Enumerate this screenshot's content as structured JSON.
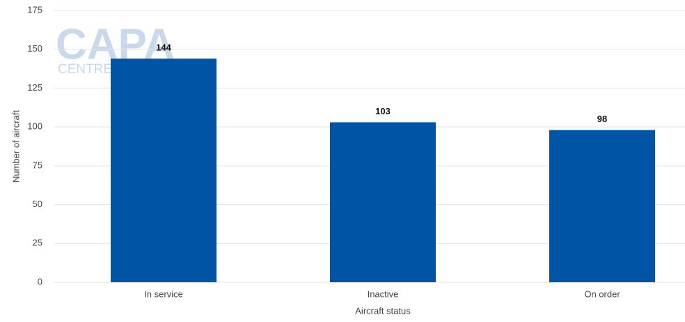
{
  "chart_data": {
    "type": "bar",
    "watermark": "CAPA",
    "watermark_sub": "CENTRE",
    "x_label": "Aircraft status",
    "y_label": "Number of aircraft",
    "categories": [
      "In service",
      "Inactive",
      "On order"
    ],
    "values": [
      144,
      103,
      98
    ],
    "color": "#0054a6",
    "ylim": [
      0,
      175
    ],
    "yticks": [
      0,
      25,
      50,
      75,
      100,
      125,
      150,
      175
    ],
    "grid": true
  }
}
